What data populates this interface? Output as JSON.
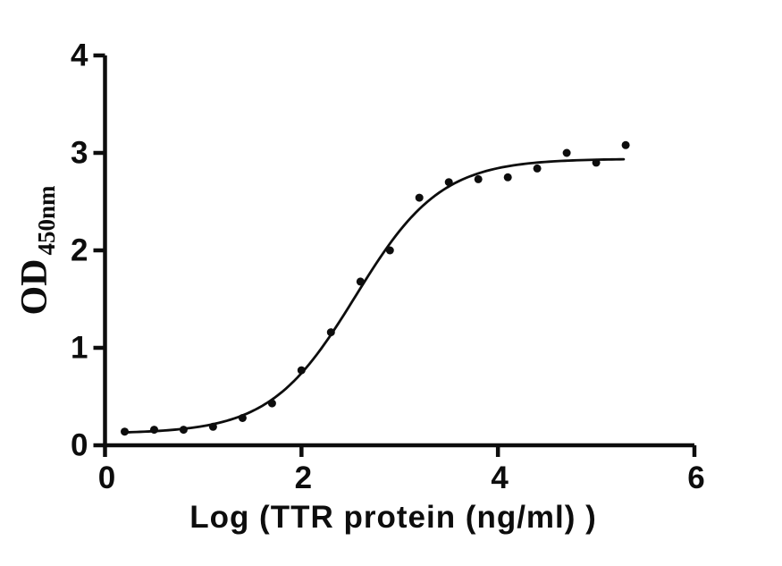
{
  "figure": {
    "background_color": "#ffffff",
    "ink_color": "#0d0d0d"
  },
  "chart_data": {
    "type": "scatter",
    "title": "",
    "xlabel": "Log (TTR protein (ng/ml) )",
    "ylabel_main": "OD",
    "ylabel_sub": "450nm",
    "xlim": [
      0,
      6
    ],
    "ylim": [
      0,
      4
    ],
    "x_ticks": [
      0,
      2,
      4,
      6
    ],
    "y_ticks": [
      0,
      1,
      2,
      3,
      4
    ],
    "grid": false,
    "legend": "none",
    "marker": {
      "shape": "circle",
      "radius": 4.5,
      "color": "#0d0d0d"
    },
    "points": [
      {
        "x": 0.2,
        "y": 0.14
      },
      {
        "x": 0.5,
        "y": 0.16
      },
      {
        "x": 0.8,
        "y": 0.16
      },
      {
        "x": 1.1,
        "y": 0.19
      },
      {
        "x": 1.4,
        "y": 0.28
      },
      {
        "x": 1.7,
        "y": 0.43
      },
      {
        "x": 2.0,
        "y": 0.77
      },
      {
        "x": 2.3,
        "y": 1.16
      },
      {
        "x": 2.6,
        "y": 1.68
      },
      {
        "x": 2.9,
        "y": 2.0
      },
      {
        "x": 3.2,
        "y": 2.54
      },
      {
        "x": 3.5,
        "y": 2.7
      },
      {
        "x": 3.8,
        "y": 2.73
      },
      {
        "x": 4.1,
        "y": 2.75
      },
      {
        "x": 4.4,
        "y": 2.84
      },
      {
        "x": 4.7,
        "y": 3.0
      },
      {
        "x": 5.0,
        "y": 2.9
      },
      {
        "x": 5.3,
        "y": 3.08
      }
    ],
    "fit_curve": {
      "model": "4PL sigmoid",
      "bottom": 0.12,
      "top": 2.94,
      "logEC50": 2.55,
      "hillslope": 1.0,
      "x_start": 0.2,
      "x_end": 5.3,
      "color": "#0d0d0d",
      "stroke_width": 2.8
    }
  }
}
